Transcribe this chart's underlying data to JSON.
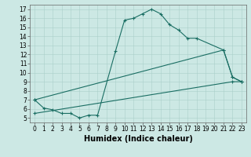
{
  "xlabel": "Humidex (Indice chaleur)",
  "xlim": [
    -0.5,
    23.5
  ],
  "ylim": [
    4.5,
    17.5
  ],
  "yticks": [
    5,
    6,
    7,
    8,
    9,
    10,
    11,
    12,
    13,
    14,
    15,
    16,
    17
  ],
  "xticks": [
    0,
    1,
    2,
    3,
    4,
    5,
    6,
    7,
    8,
    9,
    10,
    11,
    12,
    13,
    14,
    15,
    16,
    17,
    18,
    19,
    20,
    21,
    22,
    23
  ],
  "bg_color": "#cce8e4",
  "grid_color": "#aacfca",
  "line_color": "#1a6e63",
  "line1_x": [
    0,
    1,
    2,
    3,
    4,
    5,
    6,
    7,
    9,
    10,
    11,
    12,
    13,
    14,
    15,
    16,
    17,
    18,
    21,
    22,
    23
  ],
  "line1_y": [
    7.0,
    6.1,
    5.9,
    5.5,
    5.5,
    5.0,
    5.3,
    5.3,
    12.4,
    15.8,
    16.0,
    16.5,
    17.0,
    16.5,
    15.3,
    14.7,
    13.8,
    13.8,
    12.5,
    9.5,
    9.0
  ],
  "line2_x": [
    0,
    21,
    22,
    23
  ],
  "line2_y": [
    7.0,
    12.5,
    9.5,
    9.0
  ],
  "line3_x": [
    0,
    22,
    23
  ],
  "line3_y": [
    5.5,
    9.0,
    9.0
  ],
  "font_size": 6.5,
  "tick_font_size": 5.5,
  "xlabel_fontsize": 7.0
}
